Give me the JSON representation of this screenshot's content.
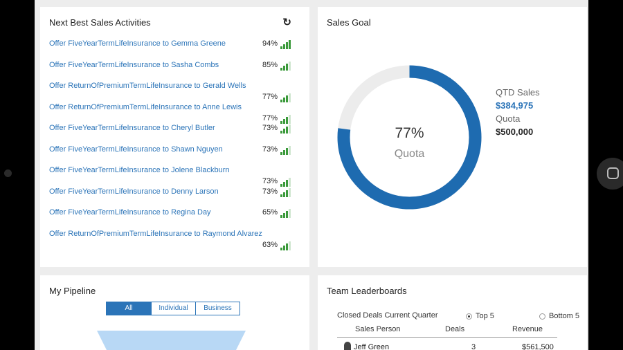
{
  "next_best": {
    "title": "Next Best Sales Activities",
    "items": [
      {
        "text": "Offer FiveYearTermLifeInsurance to Gemma Greene",
        "pct": "94%",
        "level": 0.94
      },
      {
        "text": "Offer FiveYearTermLifeInsurance to Sasha Combs",
        "pct": "85%",
        "level": 0.85
      },
      {
        "text": "Offer ReturnOfPremiumTermLifeInsurance to Gerald Wells",
        "pct": "77%",
        "level": 0.77
      },
      {
        "text": "Offer ReturnOfPremiumTermLifeInsurance to Anne Lewis",
        "pct": "77%",
        "level": 0.77
      },
      {
        "text": "Offer FiveYearTermLifeInsurance to Cheryl Butler",
        "pct": "73%",
        "level": 0.73
      },
      {
        "text": "Offer FiveYearTermLifeInsurance to Shawn Nguyen",
        "pct": "73%",
        "level": 0.73
      },
      {
        "text": "Offer FiveYearTermLifeInsurance to Jolene Blackburn",
        "pct": "73%",
        "level": 0.73
      },
      {
        "text": "Offer FiveYearTermLifeInsurance to Denny Larson",
        "pct": "73%",
        "level": 0.73
      },
      {
        "text": "Offer FiveYearTermLifeInsurance to Regina Day",
        "pct": "65%",
        "level": 0.65
      },
      {
        "text": "Offer ReturnOfPremiumTermLifeInsurance to Raymond Alvarez",
        "pct": "63%",
        "level": 0.63
      }
    ]
  },
  "sales_goal": {
    "title": "Sales Goal",
    "percent_text": "77%",
    "percent_value": 0.77,
    "center_label": "Quota",
    "qtd_label": "QTD Sales",
    "qtd_value": "$384,975",
    "quota_label": "Quota",
    "quota_value": "$500,000",
    "colors": {
      "fill": "#1e6bb0",
      "track": "#ececec"
    }
  },
  "pipeline": {
    "title": "My Pipeline",
    "segments": [
      "All",
      "Individual",
      "Business"
    ]
  },
  "leaderboard": {
    "title": "Team Leaderboards",
    "subtitle": "Closed Deals Current Quarter",
    "options": [
      "Top 5",
      "Bottom 5"
    ],
    "headers": [
      "Sales Person",
      "Deals",
      "Revenue"
    ],
    "row": [
      "Jeff Green",
      "3",
      "$561,500"
    ]
  }
}
